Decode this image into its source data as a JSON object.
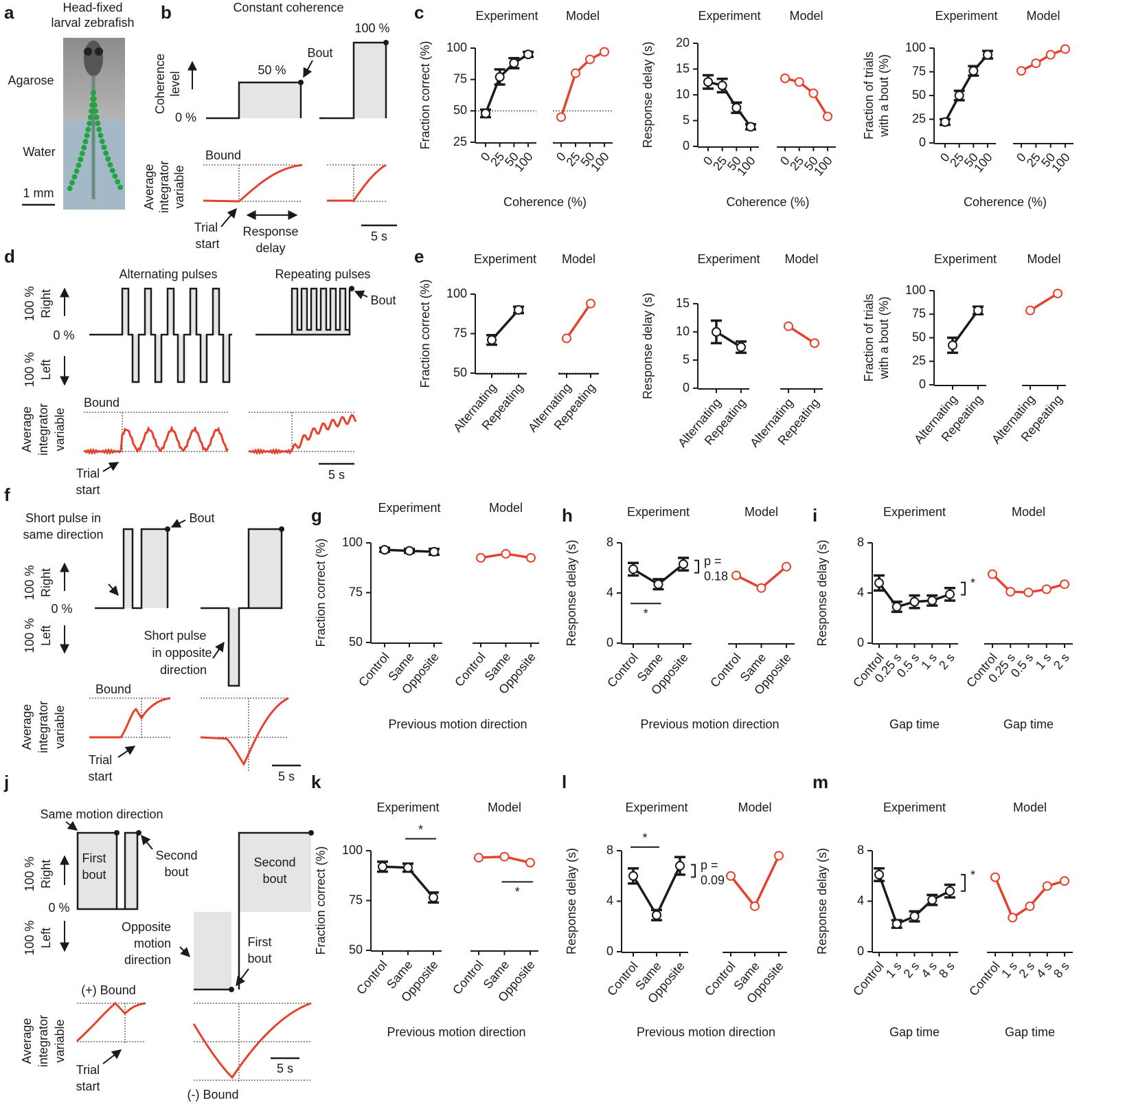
{
  "panel_labels": [
    "a",
    "b",
    "c",
    "d",
    "e",
    "f",
    "g",
    "h",
    "i",
    "j",
    "k",
    "l",
    "m"
  ],
  "schematics": {
    "a": [
      "Head-fixed",
      "larval zebrafish",
      "Agarose",
      "Water",
      "1 mm"
    ],
    "b": [
      "Constant coherence",
      "Coherence",
      "level",
      "0 %",
      "50 %",
      "100 %",
      "Bout",
      "Bound",
      "Average",
      "integrator",
      "variable",
      "Trial",
      "start",
      "Response",
      "delay",
      "5 s"
    ],
    "d": [
      "Alternating pulses",
      "Repeating pulses",
      "100 %",
      "Right",
      "0 %",
      "100 %",
      "Left",
      "Bout",
      "Bound",
      "Average",
      "integrator",
      "variable",
      "Trial",
      "start",
      "5 s"
    ],
    "f": [
      "Short pulse in",
      "same direction",
      "Bout",
      "100 %",
      "Right",
      "0 %",
      "100 %",
      "Left",
      "Short pulse",
      "in opposite",
      "direction",
      "Bound",
      "Average",
      "integrator",
      "variable",
      "Trial",
      "start",
      "5 s"
    ],
    "j": [
      "Same motion direction",
      "First",
      "bout",
      "Second",
      "bout",
      "100 %",
      "Right",
      "0 %",
      "100 %",
      "Left",
      "Opposite",
      "motion",
      "direction",
      "Second",
      "bout",
      "First",
      "bout",
      "(+) Bound",
      "Average",
      "integrator",
      "variable",
      "Trial",
      "start",
      "5 s",
      "(-) Bound"
    ]
  },
  "chart_data": [
    {
      "type": "line",
      "y_label": "Fraction correct (%)",
      "x_label": "Coherence (%)",
      "categories": [
        "0",
        "25",
        "50",
        "100"
      ],
      "ylim": [
        25,
        100
      ],
      "yticks": [
        25,
        50,
        75,
        100
      ],
      "ref_line": 50,
      "series": [
        {
          "name": "Experiment",
          "color": "#1a1a1a",
          "values": [
            48,
            77,
            88,
            95
          ],
          "errors": [
            3,
            6,
            4,
            2
          ]
        },
        {
          "name": "Model",
          "color": "#e5412d",
          "values": [
            45,
            80,
            91,
            97
          ]
        }
      ]
    },
    {
      "type": "line",
      "y_label": "Response delay (s)",
      "x_label": "Coherence (%)",
      "categories": [
        "0",
        "25",
        "50",
        "100"
      ],
      "ylim": [
        0,
        20
      ],
      "yticks": [
        0,
        5,
        10,
        15,
        20
      ],
      "series": [
        {
          "name": "Experiment",
          "color": "#1a1a1a",
          "values": [
            12.5,
            11.8,
            7.5,
            3.8
          ],
          "errors": [
            1.3,
            1.3,
            1,
            0.5
          ]
        },
        {
          "name": "Model",
          "color": "#e5412d",
          "values": [
            13.2,
            12.5,
            10.3,
            5.8
          ]
        }
      ]
    },
    {
      "type": "line",
      "y_label": [
        "Fraction of trials",
        "with a bout (%)"
      ],
      "x_label": "Coherence (%)",
      "categories": [
        "0",
        "25",
        "50",
        "100"
      ],
      "ylim": [
        0,
        100
      ],
      "yticks": [
        0,
        25,
        50,
        75,
        100
      ],
      "series": [
        {
          "name": "Experiment",
          "color": "#1a1a1a",
          "values": [
            22,
            50,
            76,
            93
          ],
          "errors": [
            3,
            5,
            5,
            4
          ]
        },
        {
          "name": "Model",
          "color": "#e5412d",
          "values": [
            76,
            84,
            93,
            99
          ]
        }
      ]
    },
    {
      "type": "line",
      "y_label": "Fraction correct (%)",
      "categories": [
        "Alternating",
        "Repeating"
      ],
      "ylim": [
        50,
        100
      ],
      "yticks": [
        50,
        75,
        100
      ],
      "ref_line": 50,
      "series": [
        {
          "name": "Experiment",
          "color": "#1a1a1a",
          "values": [
            71,
            90
          ],
          "errors": [
            3,
            2
          ]
        },
        {
          "name": "Model",
          "color": "#e5412d",
          "values": [
            72,
            94
          ]
        }
      ]
    },
    {
      "type": "line",
      "y_label": "Response delay (s)",
      "categories": [
        "Alternating",
        "Repeating"
      ],
      "ylim": [
        0,
        15
      ],
      "yticks": [
        0,
        5,
        10,
        15
      ],
      "series": [
        {
          "name": "Experiment",
          "color": "#1a1a1a",
          "values": [
            10,
            7.3
          ],
          "errors": [
            2,
            1
          ]
        },
        {
          "name": "Model",
          "color": "#e5412d",
          "values": [
            11,
            8
          ]
        }
      ]
    },
    {
      "type": "line",
      "y_label": [
        "Fraction of trials",
        "with a bout (%)"
      ],
      "categories": [
        "Alternating",
        "Repeating"
      ],
      "ylim": [
        0,
        100
      ],
      "yticks": [
        0,
        25,
        50,
        75,
        100
      ],
      "series": [
        {
          "name": "Experiment",
          "color": "#1a1a1a",
          "values": [
            42,
            79
          ],
          "errors": [
            8,
            4
          ]
        },
        {
          "name": "Model",
          "color": "#e5412d",
          "values": [
            79,
            97
          ]
        }
      ]
    },
    {
      "type": "line",
      "y_label": "Fraction correct (%)",
      "x_label": "Previous motion direction",
      "categories": [
        "Control",
        "Same",
        "Opposite"
      ],
      "ylim": [
        50,
        100
      ],
      "yticks": [
        50,
        75,
        100
      ],
      "series": [
        {
          "name": "Experiment",
          "color": "#1a1a1a",
          "values": [
            96.5,
            96,
            95.5
          ],
          "errors": [
            1,
            1,
            1.5
          ]
        },
        {
          "name": "Model",
          "color": "#e5412d",
          "values": [
            92.5,
            94.5,
            92.5
          ]
        }
      ]
    },
    {
      "type": "line",
      "y_label": "Response delay (s)",
      "x_label": "Previous motion direction",
      "categories": [
        "Control",
        "Same",
        "Opposite"
      ],
      "ylim": [
        0,
        8
      ],
      "yticks": [
        0,
        4,
        8
      ],
      "significance": [
        {
          "series": 0,
          "from": 0,
          "to": 1,
          "label": "*",
          "side": "below"
        }
      ],
      "bracket": [
        "p =",
        "0.18"
      ],
      "series": [
        {
          "name": "Experiment",
          "color": "#1a1a1a",
          "values": [
            5.9,
            4.7,
            6.3
          ],
          "errors": [
            0.5,
            0.4,
            0.5
          ]
        },
        {
          "name": "Model",
          "color": "#e5412d",
          "values": [
            5.4,
            4.4,
            6.1
          ]
        }
      ]
    },
    {
      "type": "line",
      "y_label": "Response delay (s)",
      "x_label": [
        "Gap time",
        "Gap time"
      ],
      "categories": [
        "Control",
        "0.25 s",
        "0.5 s",
        "1 s",
        "2 s"
      ],
      "ylim": [
        0,
        8
      ],
      "yticks": [
        0,
        4,
        8
      ],
      "bracket": [
        "*"
      ],
      "series": [
        {
          "name": "Experiment",
          "color": "#1a1a1a",
          "values": [
            4.8,
            2.9,
            3.3,
            3.4,
            3.9
          ],
          "errors": [
            0.6,
            0.4,
            0.5,
            0.4,
            0.5
          ]
        },
        {
          "name": "Model",
          "color": "#e5412d",
          "values": [
            5.5,
            4.1,
            4.05,
            4.3,
            4.7
          ]
        }
      ]
    },
    {
      "type": "line",
      "y_label": "Fraction correct (%)",
      "x_label": "Previous motion direction",
      "categories": [
        "Control",
        "Same",
        "Opposite"
      ],
      "ylim": [
        50,
        100
      ],
      "yticks": [
        50,
        75,
        100
      ],
      "significance": [
        {
          "series": 0,
          "from": 1,
          "to": 2,
          "label": "*",
          "side": "above"
        },
        {
          "series": 1,
          "from": 1,
          "to": 2,
          "label": "*",
          "side": "below"
        }
      ],
      "series": [
        {
          "name": "Experiment",
          "color": "#1a1a1a",
          "values": [
            92,
            91.5,
            76.5
          ],
          "errors": [
            2.5,
            2,
            2.5
          ]
        },
        {
          "name": "Model",
          "color": "#e5412d",
          "values": [
            96.5,
            97,
            94
          ]
        }
      ]
    },
    {
      "type": "line",
      "y_label": "Response delay (s)",
      "x_label": "Previous motion direction",
      "categories": [
        "Control",
        "Same",
        "Opposite"
      ],
      "ylim": [
        0,
        8
      ],
      "yticks": [
        0,
        4,
        8
      ],
      "significance": [
        {
          "series": 0,
          "from": 0,
          "to": 1,
          "label": "*",
          "side": "above"
        }
      ],
      "bracket": [
        "p =",
        "0.09"
      ],
      "series": [
        {
          "name": "Experiment",
          "color": "#1a1a1a",
          "values": [
            6.0,
            2.9,
            6.8
          ],
          "errors": [
            0.6,
            0.4,
            0.7
          ]
        },
        {
          "name": "Model",
          "color": "#e5412d",
          "values": [
            6.0,
            3.6,
            7.6
          ]
        }
      ]
    },
    {
      "type": "line",
      "y_label": "Response delay (s)",
      "x_label": [
        "Gap time",
        "Gap time"
      ],
      "categories": [
        "Control",
        "1 s",
        "2 s",
        "4 s",
        "8 s"
      ],
      "ylim": [
        0,
        8
      ],
      "yticks": [
        0,
        4,
        8
      ],
      "bracket": [
        "*"
      ],
      "series": [
        {
          "name": "Experiment",
          "color": "#1a1a1a",
          "values": [
            6.1,
            2.2,
            2.8,
            4.1,
            4.8
          ],
          "errors": [
            0.5,
            0.3,
            0.4,
            0.4,
            0.5
          ]
        },
        {
          "name": "Model",
          "color": "#e5412d",
          "values": [
            5.9,
            2.7,
            3.6,
            5.2,
            5.6
          ]
        }
      ]
    }
  ]
}
